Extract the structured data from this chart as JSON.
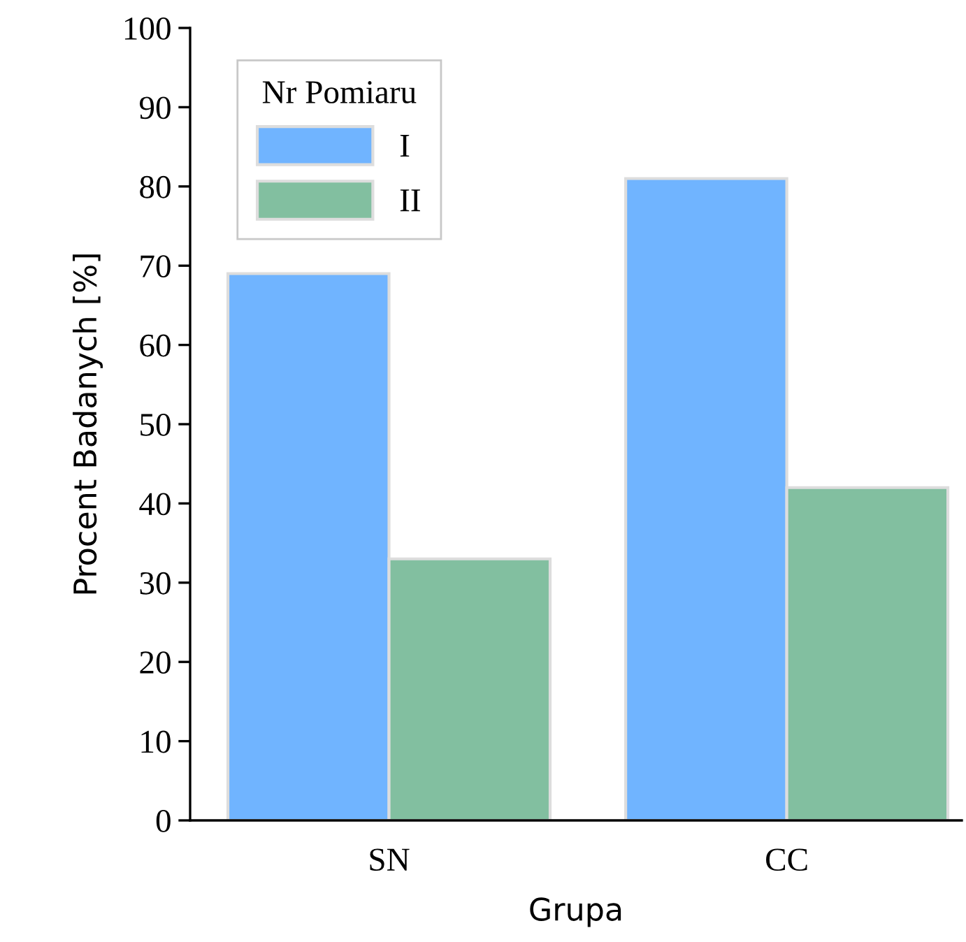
{
  "chart_data": {
    "type": "bar",
    "xlabel": "Grupa",
    "ylabel": "Procent Badanych [%]",
    "legend_title": "Nr Pomiaru",
    "categories": [
      "SN",
      "CC"
    ],
    "series": [
      {
        "name": "I",
        "color": "#70b4ff",
        "values": [
          69,
          81
        ]
      },
      {
        "name": "II",
        "color": "#82bfa0",
        "values": [
          33,
          42
        ]
      }
    ],
    "ylim": [
      0,
      100
    ],
    "yticks": [
      0,
      10,
      20,
      30,
      40,
      50,
      60,
      70,
      80,
      90,
      100
    ],
    "grid": false,
    "legend": "top left"
  }
}
